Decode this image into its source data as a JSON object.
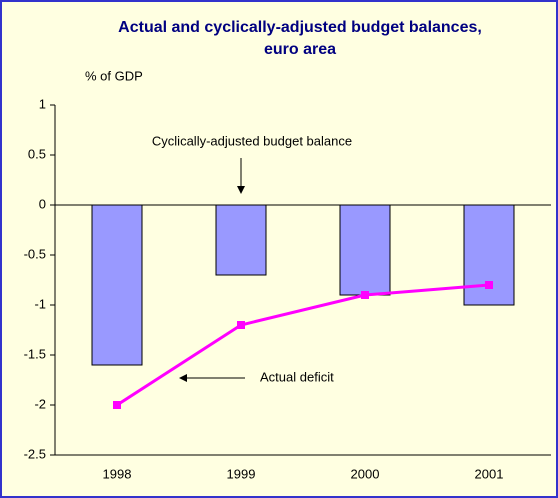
{
  "chart_data": {
    "type": "bar_line",
    "title": [
      "Actual and  cyclically-adjusted budget balances,",
      "euro area"
    ],
    "y_label": "% of GDP",
    "categories": [
      "1998",
      "1999",
      "2000",
      "2001"
    ],
    "series": [
      {
        "name": "Cyclically-adjusted budget balance",
        "type": "bar",
        "color": "#9999ff",
        "values": [
          -1.6,
          -0.7,
          -0.9,
          -1.0
        ]
      },
      {
        "name": "Actual deficit",
        "type": "line",
        "color": "#ff00ff",
        "values": [
          -2.0,
          -1.2,
          -0.9,
          -0.8
        ]
      }
    ],
    "ylim": [
      -2.5,
      1
    ],
    "yticks": [
      1,
      0.5,
      0,
      -0.5,
      -1,
      -1.5,
      -2,
      -2.5
    ]
  }
}
